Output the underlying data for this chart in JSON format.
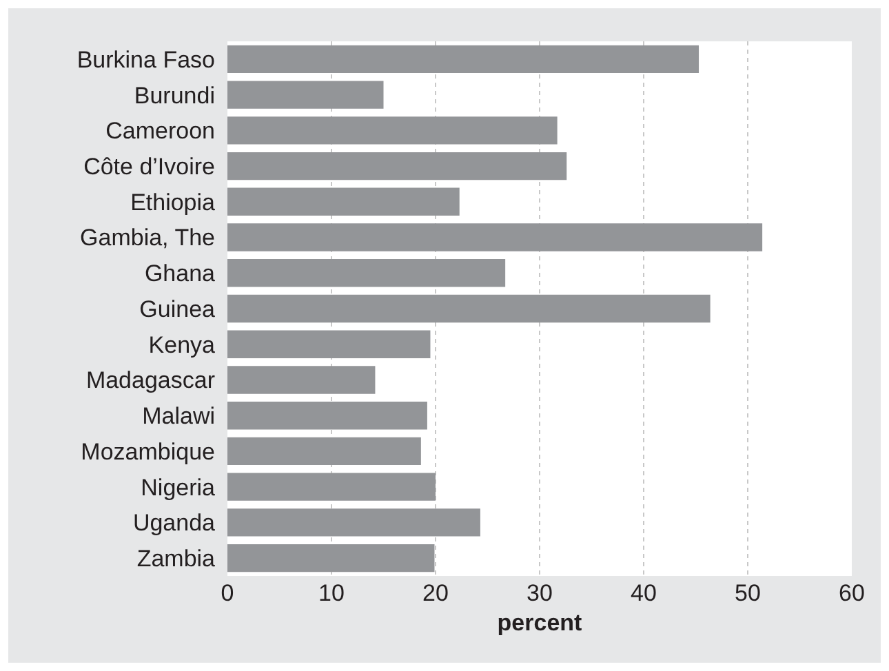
{
  "chart_data": {
    "type": "bar",
    "orientation": "horizontal",
    "xlabel": "percent",
    "categories": [
      "Burkina Faso",
      "Burundi",
      "Cameroon",
      "Côte d’Ivoire",
      "Ethiopia",
      "Gambia, The",
      "Ghana",
      "Guinea",
      "Kenya",
      "Madagascar",
      "Malawi",
      "Mozambique",
      "Nigeria",
      "Uganda",
      "Zambia"
    ],
    "values": [
      45.3,
      15.0,
      31.7,
      32.6,
      22.3,
      51.4,
      26.7,
      46.4,
      19.5,
      14.2,
      19.2,
      18.6,
      20.0,
      24.3,
      19.9
    ],
    "color": "#939598",
    "xlim": [
      0,
      60
    ],
    "xticks": [
      0,
      10,
      20,
      30,
      40,
      50,
      60
    ],
    "grid": "x"
  }
}
